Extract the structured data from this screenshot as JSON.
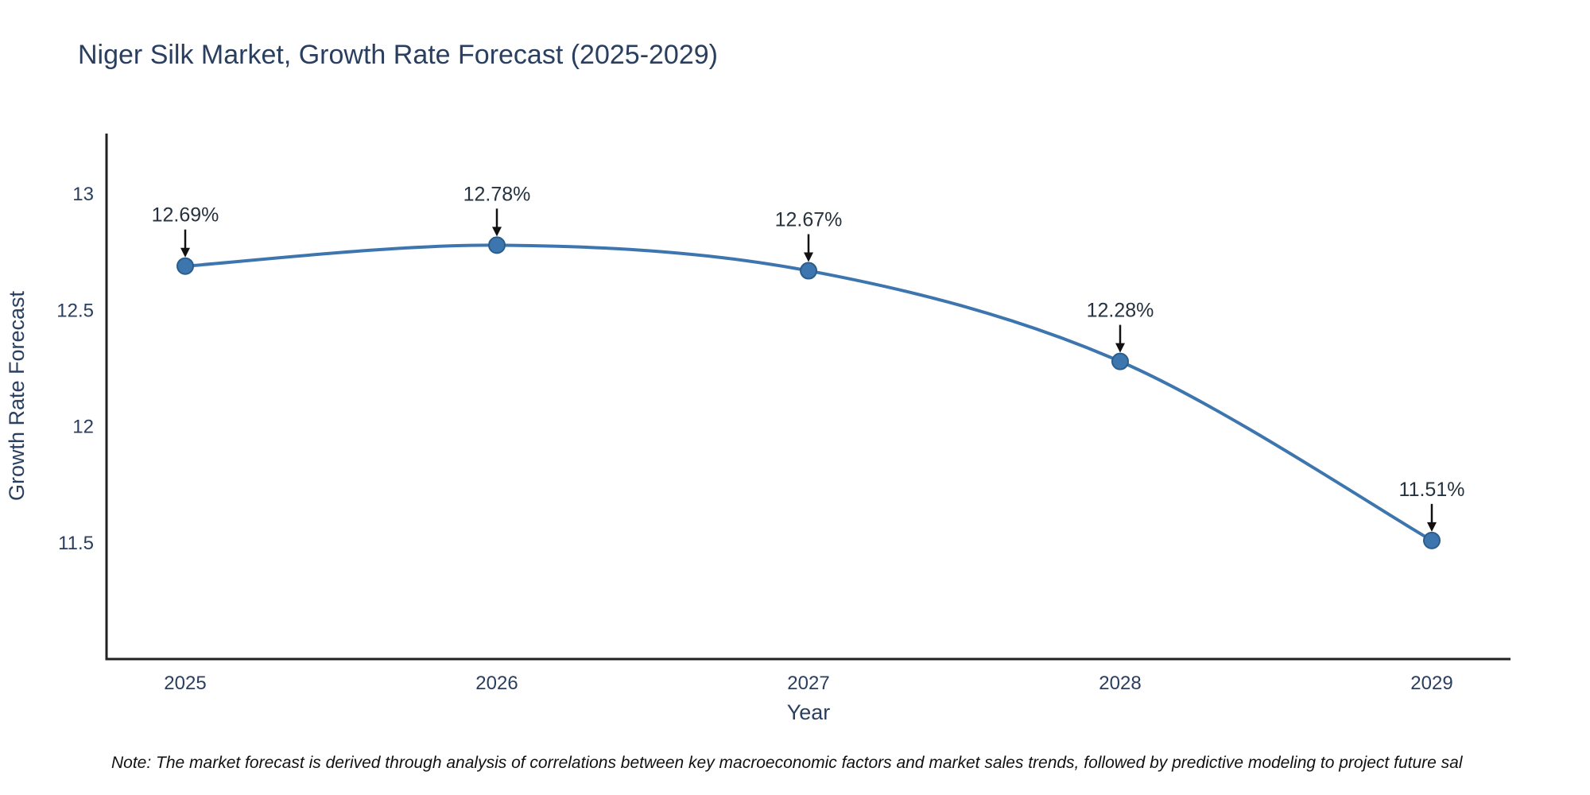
{
  "title": "Niger Silk Market, Growth Rate Forecast (2025-2029)",
  "note": "Note: The market forecast is derived through analysis of correlations between key macroeconomic factors and market sales trends, followed by predictive modeling to project future sal",
  "chart_data": {
    "type": "line",
    "title": "Niger Silk Market, Growth Rate Forecast (2025-2029)",
    "xlabel": "Year",
    "ylabel": "Growth Rate Forecast",
    "categories": [
      "2025",
      "2026",
      "2027",
      "2028",
      "2029"
    ],
    "values": [
      12.69,
      12.78,
      12.67,
      12.28,
      11.51
    ],
    "labels": [
      "12.69%",
      "12.78%",
      "12.67%",
      "12.28%",
      "11.51%"
    ],
    "ylim": [
      11.0,
      13.26
    ],
    "yticks": [
      11.5,
      12,
      12.5,
      13
    ],
    "ytick_labels": [
      "11.5",
      "12",
      "12.5",
      "13"
    ],
    "line_color": "#3d76ae",
    "marker_color": "#3d76ae",
    "marker_edge_color": "#2c5d8a",
    "axis_color": "#222222",
    "annotation_arrow_color": "#111111",
    "grid": false,
    "legend": "none",
    "line_shape": "spline"
  }
}
